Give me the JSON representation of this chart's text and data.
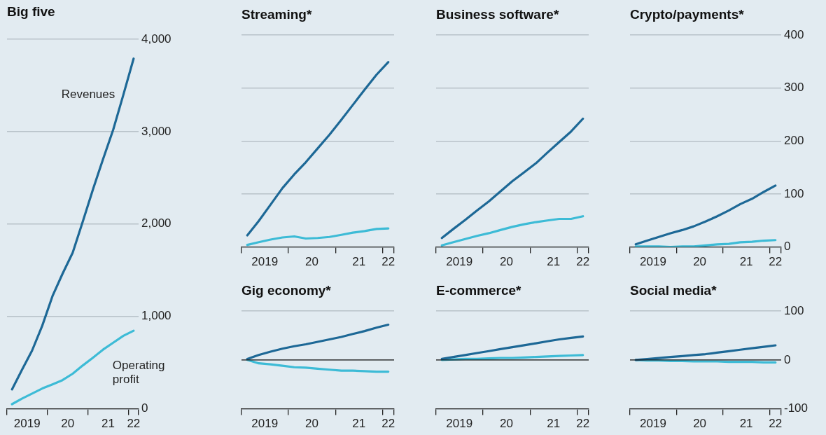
{
  "chart_data": [
    {
      "type": "line",
      "title": "Big five",
      "x": [
        "2019-02-15",
        "2019-05-15",
        "2019-08-15",
        "2019-11-15",
        "2020-02-15",
        "2020-05-15",
        "2020-08-15",
        "2020-11-15",
        "2021-02-15",
        "2021-05-15",
        "2021-08-15",
        "2021-11-15",
        "2022-02-15"
      ],
      "series": [
        {
          "name": "Revenues",
          "color": "#1d6896",
          "values": [
            210,
            420,
            630,
            900,
            1220,
            1460,
            1690,
            2030,
            2380,
            2700,
            3020,
            3400,
            3790
          ]
        },
        {
          "name": "Operating profit",
          "color": "#3dbbd6",
          "values": [
            50,
            110,
            165,
            220,
            265,
            310,
            380,
            470,
            555,
            640,
            715,
            790,
            845
          ]
        }
      ],
      "xlim": [
        "2019-01-01",
        "2022-04-01"
      ],
      "xticks": [
        {
          "value": "2019-01-01",
          "label": null
        },
        {
          "value": "2019-07-01",
          "label": "2019"
        },
        {
          "value": "2020-01-01",
          "label": null
        },
        {
          "value": "2020-07-01",
          "label": "20"
        },
        {
          "value": "2021-01-01",
          "label": null
        },
        {
          "value": "2021-07-01",
          "label": "21"
        },
        {
          "value": "2022-01-01",
          "label": null
        },
        {
          "value": "2022-02-15",
          "label": "22"
        },
        {
          "value": "2022-04-01",
          "label": null
        }
      ],
      "ylim": [
        0,
        4000
      ],
      "yticks": [
        {
          "value": 0,
          "label": "0"
        },
        {
          "value": 1000,
          "label": "1,000"
        },
        {
          "value": 2000,
          "label": "2,000"
        },
        {
          "value": 3000,
          "label": "3,000"
        },
        {
          "value": 4000,
          "label": "4,000"
        }
      ],
      "grid": "y"
    },
    {
      "type": "line",
      "title": "Streaming*",
      "x": [
        "2019-02-15",
        "2019-05-15",
        "2019-08-15",
        "2019-11-15",
        "2020-02-15",
        "2020-05-15",
        "2020-08-15",
        "2020-11-15",
        "2021-02-15",
        "2021-05-15",
        "2021-08-15",
        "2021-11-15",
        "2022-02-15"
      ],
      "series": [
        {
          "color": "#1d6896",
          "values": [
            22,
            49,
            80,
            111,
            137,
            160,
            186,
            212,
            240,
            268,
            297,
            325,
            349
          ]
        },
        {
          "color": "#3dbbd6",
          "values": [
            4,
            9,
            14,
            18,
            20,
            16,
            17,
            19,
            23,
            27,
            30,
            34,
            35
          ]
        }
      ],
      "xlim": [
        "2019-01-01",
        "2022-04-01"
      ],
      "xticks": [
        {
          "value": "2019-01-01",
          "label": null
        },
        {
          "value": "2019-07-01",
          "label": "2019"
        },
        {
          "value": "2020-01-01",
          "label": null
        },
        {
          "value": "2020-07-01",
          "label": "20"
        },
        {
          "value": "2021-01-01",
          "label": null
        },
        {
          "value": "2021-07-01",
          "label": "21"
        },
        {
          "value": "2022-01-01",
          "label": null
        },
        {
          "value": "2022-02-15",
          "label": "22"
        },
        {
          "value": "2022-04-01",
          "label": null
        }
      ],
      "ylim": [
        0,
        400
      ],
      "yticks": [
        0,
        100,
        200,
        300,
        400
      ],
      "grid": "y",
      "tick_labels": "x"
    },
    {
      "type": "line",
      "title": "Business software*",
      "x": [
        "2019-02-15",
        "2019-05-15",
        "2019-08-15",
        "2019-11-15",
        "2020-02-15",
        "2020-05-15",
        "2020-08-15",
        "2020-11-15",
        "2021-02-15",
        "2021-05-15",
        "2021-08-15",
        "2021-11-15",
        "2022-02-15"
      ],
      "series": [
        {
          "color": "#1d6896",
          "values": [
            17,
            34,
            51,
            69,
            86,
            105,
            124,
            141,
            158,
            178,
            198,
            218,
            242
          ]
        },
        {
          "color": "#3dbbd6",
          "values": [
            3,
            9,
            15,
            21,
            26,
            32,
            38,
            43,
            47,
            50,
            53,
            53,
            58
          ]
        }
      ],
      "xlim": [
        "2019-01-01",
        "2022-04-01"
      ],
      "xticks": [
        {
          "value": "2019-01-01",
          "label": null
        },
        {
          "value": "2019-07-01",
          "label": "2019"
        },
        {
          "value": "2020-01-01",
          "label": null
        },
        {
          "value": "2020-07-01",
          "label": "20"
        },
        {
          "value": "2021-01-01",
          "label": null
        },
        {
          "value": "2021-07-01",
          "label": "21"
        },
        {
          "value": "2022-01-01",
          "label": null
        },
        {
          "value": "2022-02-15",
          "label": "22"
        },
        {
          "value": "2022-04-01",
          "label": null
        }
      ],
      "ylim": [
        0,
        400
      ],
      "yticks": [
        0,
        100,
        200,
        300,
        400
      ],
      "grid": "y",
      "tick_labels": "x"
    },
    {
      "type": "line",
      "title": "Crypto/payments*",
      "x": [
        "2019-02-15",
        "2019-05-15",
        "2019-08-15",
        "2019-11-15",
        "2020-02-15",
        "2020-05-15",
        "2020-08-15",
        "2020-11-15",
        "2021-02-15",
        "2021-05-15",
        "2021-08-15",
        "2021-11-15",
        "2022-02-15"
      ],
      "series": [
        {
          "color": "#1d6896",
          "values": [
            5,
            12,
            19,
            26,
            32,
            39,
            48,
            58,
            69,
            81,
            91,
            104,
            116
          ]
        },
        {
          "color": "#3dbbd6",
          "values": [
            1,
            1,
            1,
            0,
            1,
            1,
            3,
            5,
            6,
            9,
            10,
            12,
            13
          ]
        }
      ],
      "xlim": [
        "2019-01-01",
        "2022-04-01"
      ],
      "xticks": [
        {
          "value": "2019-01-01",
          "label": null
        },
        {
          "value": "2019-07-01",
          "label": "2019"
        },
        {
          "value": "2020-01-01",
          "label": null
        },
        {
          "value": "2020-07-01",
          "label": "20"
        },
        {
          "value": "2021-01-01",
          "label": null
        },
        {
          "value": "2021-07-01",
          "label": "21"
        },
        {
          "value": "2022-01-01",
          "label": null
        },
        {
          "value": "2022-02-15",
          "label": "22"
        },
        {
          "value": "2022-04-01",
          "label": null
        }
      ],
      "ylim": [
        0,
        400
      ],
      "yticks": [
        0,
        100,
        200,
        300,
        400
      ],
      "grid": "y"
    },
    {
      "type": "line",
      "title": "Gig economy*",
      "x": [
        "2019-02-15",
        "2019-05-15",
        "2019-08-15",
        "2019-11-15",
        "2020-02-15",
        "2020-05-15",
        "2020-08-15",
        "2020-11-15",
        "2021-02-15",
        "2021-05-15",
        "2021-08-15",
        "2021-11-15",
        "2022-02-15"
      ],
      "series": [
        {
          "color": "#1d6896",
          "values": [
            2,
            10,
            17,
            23,
            28,
            32,
            37,
            42,
            47,
            53,
            59,
            66,
            72
          ]
        },
        {
          "color": "#3dbbd6",
          "values": [
            0,
            -7,
            -9,
            -12,
            -15,
            -16,
            -18,
            -20,
            -22,
            -22,
            -23,
            -24,
            -24
          ]
        }
      ],
      "xlim": [
        "2019-01-01",
        "2022-04-01"
      ],
      "xticks": [
        {
          "value": "2019-01-01",
          "label": null
        },
        {
          "value": "2019-07-01",
          "label": "2019"
        },
        {
          "value": "2020-01-01",
          "label": null
        },
        {
          "value": "2020-07-01",
          "label": "20"
        },
        {
          "value": "2021-01-01",
          "label": null
        },
        {
          "value": "2021-07-01",
          "label": "21"
        },
        {
          "value": "2022-01-01",
          "label": null
        },
        {
          "value": "2022-02-15",
          "label": "22"
        },
        {
          "value": "2022-04-01",
          "label": null
        }
      ],
      "ylim": [
        -100,
        100
      ],
      "yticks": [
        -100,
        0,
        100
      ],
      "grid": "y",
      "tick_labels": "x",
      "ref_lines": [
        {
          "axis": "y",
          "value": 0,
          "color": "#1a1a1a"
        }
      ]
    },
    {
      "type": "line",
      "title": "E-commerce*",
      "x": [
        "2019-02-15",
        "2019-05-15",
        "2019-08-15",
        "2019-11-15",
        "2020-02-15",
        "2020-05-15",
        "2020-08-15",
        "2020-11-15",
        "2021-02-15",
        "2021-05-15",
        "2021-08-15",
        "2021-11-15",
        "2022-02-15"
      ],
      "series": [
        {
          "color": "#1d6896",
          "values": [
            2,
            6,
            10,
            14,
            18,
            22,
            26,
            30,
            34,
            38,
            42,
            45,
            48
          ]
        },
        {
          "color": "#3dbbd6",
          "values": [
            0,
            1,
            2,
            2,
            3,
            4,
            4,
            5,
            6,
            7,
            8,
            9,
            10
          ]
        }
      ],
      "xlim": [
        "2019-01-01",
        "2022-04-01"
      ],
      "xticks": [
        {
          "value": "2019-01-01",
          "label": null
        },
        {
          "value": "2019-07-01",
          "label": "2019"
        },
        {
          "value": "2020-01-01",
          "label": null
        },
        {
          "value": "2020-07-01",
          "label": "20"
        },
        {
          "value": "2021-01-01",
          "label": null
        },
        {
          "value": "2021-07-01",
          "label": "21"
        },
        {
          "value": "2022-01-01",
          "label": null
        },
        {
          "value": "2022-02-15",
          "label": "22"
        },
        {
          "value": "2022-04-01",
          "label": null
        }
      ],
      "ylim": [
        -100,
        100
      ],
      "yticks": [
        -100,
        0,
        100
      ],
      "grid": "y",
      "tick_labels": "x",
      "ref_lines": [
        {
          "axis": "y",
          "value": 0,
          "color": "#1a1a1a"
        }
      ]
    },
    {
      "type": "line",
      "title": "Social media*",
      "x": [
        "2019-02-15",
        "2019-05-15",
        "2019-08-15",
        "2019-11-15",
        "2020-02-15",
        "2020-05-15",
        "2020-08-15",
        "2020-11-15",
        "2021-02-15",
        "2021-05-15",
        "2021-08-15",
        "2021-11-15",
        "2022-02-15"
      ],
      "series": [
        {
          "color": "#1d6896",
          "values": [
            0,
            2,
            4,
            6,
            8,
            10,
            12,
            15,
            18,
            21,
            24,
            27,
            30
          ]
        },
        {
          "color": "#3dbbd6",
          "values": [
            0,
            -1,
            -1,
            -2,
            -2,
            -3,
            -3,
            -3,
            -4,
            -4,
            -4,
            -5,
            -5
          ]
        }
      ],
      "xlim": [
        "2019-01-01",
        "2022-04-01"
      ],
      "xticks": [
        {
          "value": "2019-01-01",
          "label": null
        },
        {
          "value": "2019-07-01",
          "label": "2019"
        },
        {
          "value": "2020-01-01",
          "label": null
        },
        {
          "value": "2020-07-01",
          "label": "20"
        },
        {
          "value": "2021-01-01",
          "label": null
        },
        {
          "value": "2021-07-01",
          "label": "21"
        },
        {
          "value": "2022-01-01",
          "label": null
        },
        {
          "value": "2022-02-15",
          "label": "22"
        },
        {
          "value": "2022-04-01",
          "label": null
        }
      ],
      "ylim": [
        -100,
        100
      ],
      "yticks": [
        -100,
        0,
        100
      ],
      "grid": "y",
      "ref_lines": [
        {
          "axis": "y",
          "value": 0,
          "color": "#1a1a1a"
        }
      ]
    }
  ]
}
